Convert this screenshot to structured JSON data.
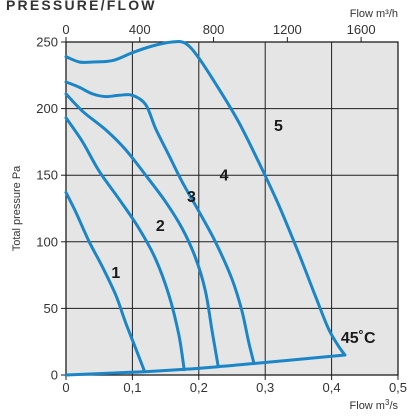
{
  "title": "PRESSURE/FLOW",
  "chart_data": {
    "type": "line",
    "bottom_axis": {
      "label_text": "Flow m",
      "label_sup": "3",
      "label_suffix": "/s",
      "range": [
        0,
        0.5
      ],
      "ticks": [
        0,
        0.1,
        0.2,
        0.3,
        0.4,
        0.5
      ],
      "tick_labels": [
        "0",
        "0,1",
        "0,2",
        "0,3",
        "0,4",
        "0,5"
      ]
    },
    "top_axis": {
      "label": "Flow m³/h",
      "range": [
        0,
        1800
      ],
      "ticks": [
        0,
        400,
        800,
        1200,
        1600
      ],
      "tick_labels": [
        "0",
        "400",
        "800",
        "1200",
        "1600"
      ]
    },
    "y_axis": {
      "label": "Total pressure Pa",
      "range": [
        0,
        250
      ],
      "ticks": [
        0,
        50,
        100,
        150,
        200,
        250
      ],
      "tick_labels": [
        "0",
        "50",
        "100",
        "150",
        "200",
        "250"
      ]
    },
    "grid": true,
    "background_color": "#e5e5e5",
    "line_color": "#1a86c8",
    "series": [
      {
        "name": "1",
        "x": [
          0,
          0.015,
          0.035,
          0.055,
          0.075,
          0.09,
          0.105,
          0.118
        ],
        "y": [
          137,
          122,
          100,
          81,
          60,
          39,
          20,
          3
        ]
      },
      {
        "name": "2",
        "x": [
          0,
          0.025,
          0.05,
          0.08,
          0.11,
          0.135,
          0.155,
          0.17,
          0.178
        ],
        "y": [
          193,
          175,
          153,
          132,
          110,
          87,
          60,
          30,
          4
        ]
      },
      {
        "name": "3",
        "x": [
          0,
          0.025,
          0.06,
          0.09,
          0.12,
          0.15,
          0.175,
          0.195,
          0.21,
          0.22,
          0.229
        ],
        "y": [
          211,
          198,
          184,
          169,
          150,
          130,
          110,
          88,
          63,
          33,
          7
        ]
      },
      {
        "name": "4",
        "x": [
          0,
          0.02,
          0.04,
          0.06,
          0.08,
          0.1,
          0.12,
          0.135,
          0.155,
          0.175,
          0.2,
          0.225,
          0.25,
          0.265,
          0.275,
          0.283
        ],
        "y": [
          220,
          216,
          211,
          209,
          210,
          210,
          203,
          185,
          165,
          145,
          123,
          100,
          72,
          48,
          25,
          9
        ]
      },
      {
        "name": "5",
        "x": [
          0,
          0.02,
          0.04,
          0.07,
          0.1,
          0.13,
          0.16,
          0.18,
          0.2,
          0.23,
          0.26,
          0.29,
          0.32,
          0.35,
          0.375,
          0.395,
          0.41,
          0.42
        ],
        "y": [
          239,
          235,
          235,
          236,
          242,
          247,
          250,
          249,
          238,
          215,
          190,
          160,
          128,
          92,
          60,
          35,
          22,
          15
        ]
      }
    ],
    "limit_curve": {
      "name": "45˚C",
      "x": [
        0,
        0.118,
        0.178,
        0.229,
        0.283,
        0.42
      ],
      "y": [
        0,
        2.5,
        4.3,
        6.2,
        8.6,
        15
      ]
    },
    "curve_labels": [
      {
        "text": "1",
        "x": 0.075,
        "y": 73
      },
      {
        "text": "2",
        "x": 0.142,
        "y": 108
      },
      {
        "text": "3",
        "x": 0.189,
        "y": 130
      },
      {
        "text": "4",
        "x": 0.238,
        "y": 146
      },
      {
        "text": "5",
        "x": 0.32,
        "y": 183
      },
      {
        "text": "45˚C",
        "x": 0.44,
        "y": 24
      }
    ]
  }
}
